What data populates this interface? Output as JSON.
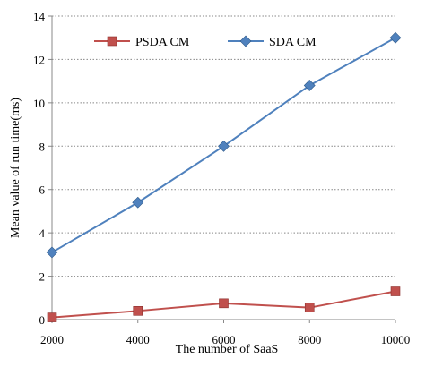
{
  "chart_data": {
    "type": "line",
    "title": "",
    "xlabel": "The number of SaaS",
    "ylabel": "Mean value of run time(ms)",
    "x": [
      2000,
      4000,
      6000,
      8000,
      10000
    ],
    "x_ticks": [
      "2000",
      "4000",
      "6000",
      "8000",
      "10000"
    ],
    "y_ticks": [
      "0",
      "2",
      "4",
      "6",
      "8",
      "10",
      "12",
      "14"
    ],
    "ylim": [
      0,
      14
    ],
    "xlim": [
      2000,
      10000
    ],
    "grid": "horizontal dotted",
    "legend_position": "top",
    "series": [
      {
        "name": "PSDA CM",
        "values": [
          0.1,
          0.4,
          0.75,
          0.55,
          1.3
        ],
        "color": "#c0504d",
        "marker": "square"
      },
      {
        "name": "SDA CM",
        "values": [
          3.1,
          5.4,
          8.0,
          10.8,
          13.0
        ],
        "color": "#4f81bd",
        "marker": "diamond"
      }
    ]
  }
}
